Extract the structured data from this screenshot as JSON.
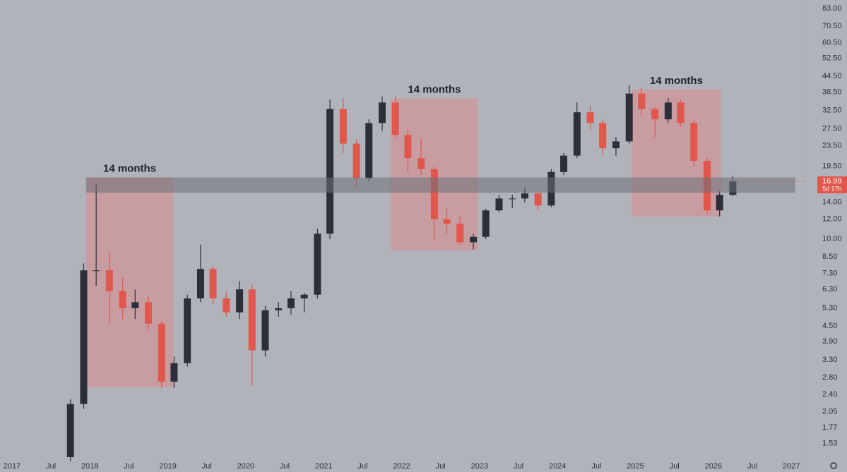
{
  "chart_data": {
    "type": "candlestick",
    "log_scale": true,
    "up_color": "#2b2f3a",
    "down_color": "#e2574c",
    "zone_color": "#d98a8e",
    "band_color": "#6e7079",
    "xlim": [
      2016.846,
      2027.18
    ],
    "ylim": [
      1.29,
      89.7
    ],
    "xticks": [
      2017,
      {
        "value": 2017.5,
        "label": "Jul"
      },
      2018,
      {
        "value": 2018.5,
        "label": "Jul"
      },
      2019,
      {
        "value": 2019.5,
        "label": "Jul"
      },
      2020,
      {
        "value": 2020.5,
        "label": "Jul"
      },
      2021,
      {
        "value": 2021.5,
        "label": "Jul"
      },
      2022,
      {
        "value": 2022.5,
        "label": "Jul"
      },
      2023,
      {
        "value": 2023.5,
        "label": "Jul"
      },
      2024,
      {
        "value": 2024.5,
        "label": "Jul"
      },
      2025,
      {
        "value": 2025.5,
        "label": "Jul"
      },
      2026,
      {
        "value": 2026.5,
        "label": "Jul"
      },
      2027
    ],
    "yticks": [
      {
        "value": 83,
        "label": "83.00"
      },
      {
        "value": 70.5,
        "label": "70.50"
      },
      {
        "value": 60.5,
        "label": "60.50"
      },
      {
        "value": 52.5,
        "label": "52.50"
      },
      {
        "value": 44.5,
        "label": "44.50"
      },
      {
        "value": 38.5,
        "label": "38.50"
      },
      {
        "value": 32.5,
        "label": "32.50"
      },
      {
        "value": 27.5,
        "label": "27.50"
      },
      {
        "value": 23.5,
        "label": "23.50"
      },
      {
        "value": 19.5,
        "label": "19.50"
      },
      {
        "value": 14,
        "label": "14.00"
      },
      {
        "value": 12,
        "label": "12.00"
      },
      {
        "value": 10,
        "label": "10.00"
      },
      {
        "value": 8.5,
        "label": "8.50"
      },
      {
        "value": 7.3,
        "label": "7.30"
      },
      {
        "value": 6.3,
        "label": "6.30"
      },
      {
        "value": 5.3,
        "label": "5.30"
      },
      {
        "value": 4.5,
        "label": "4.50"
      },
      {
        "value": 3.9,
        "label": "3.90"
      },
      {
        "value": 3.3,
        "label": "3.30"
      },
      {
        "value": 2.8,
        "label": "2.80"
      },
      {
        "value": 2.4,
        "label": "2.40"
      },
      {
        "value": 2.05,
        "label": "2.05"
      },
      {
        "value": 1.77,
        "label": "1.77"
      },
      {
        "value": 1.53,
        "label": "1.53"
      }
    ],
    "x": [
      2017.75,
      2017.92,
      2018.08,
      2018.25,
      2018.42,
      2018.58,
      2018.75,
      2018.92,
      2019.08,
      2019.25,
      2019.42,
      2019.58,
      2019.75,
      2019.92,
      2020.08,
      2020.25,
      2020.42,
      2020.58,
      2020.75,
      2020.92,
      2021.08,
      2021.25,
      2021.42,
      2021.58,
      2021.75,
      2021.92,
      2022.08,
      2022.25,
      2022.42,
      2022.58,
      2022.75,
      2022.92,
      2023.08,
      2023.25,
      2023.42,
      2023.58,
      2023.75,
      2023.92,
      2024.08,
      2024.25,
      2024.42,
      2024.58,
      2024.75,
      2024.92,
      2025.08,
      2025.25,
      2025.42,
      2025.58,
      2025.75,
      2025.92,
      2026.08,
      2026.25
    ],
    "open": [
      1.35,
      2.2,
      7.5,
      7.5,
      6.2,
      5.3,
      5.6,
      4.6,
      2.7,
      3.2,
      5.8,
      7.6,
      5.8,
      5.1,
      6.3,
      3.6,
      5.2,
      5.3,
      5.8,
      6.0,
      10.5,
      33,
      24,
      17.5,
      29,
      35,
      26,
      21,
      19,
      12,
      11.5,
      9.7,
      10.2,
      13,
      14.5,
      14.5,
      15.2,
      13.6,
      18.5,
      21.5,
      32,
      29,
      23,
      24.5,
      38,
      33,
      30,
      35,
      29,
      20.5,
      13,
      15
    ],
    "high": [
      2.3,
      8,
      16.5,
      8.8,
      7,
      6.3,
      5.9,
      4.7,
      3.4,
      6.0,
      9.5,
      7.8,
      6.2,
      6.8,
      6.6,
      5.4,
      5.6,
      6.2,
      6.1,
      11,
      36,
      36.5,
      25,
      30,
      37,
      37,
      27.5,
      25,
      19.5,
      13.2,
      12.4,
      10.5,
      13.2,
      15,
      15,
      16,
      15.4,
      19,
      22,
      35,
      34,
      30,
      25.5,
      41,
      40,
      33.5,
      36.5,
      36,
      30,
      21,
      15.5,
      17.8
    ],
    "low": [
      1.3,
      2.1,
      6.5,
      4.6,
      4.8,
      4.8,
      4.3,
      2.55,
      2.55,
      3.1,
      5.6,
      5.5,
      4.9,
      4.8,
      2.6,
      3.4,
      4.9,
      5.0,
      5.1,
      5.8,
      10,
      22,
      16,
      17,
      27,
      25,
      18.5,
      18,
      9.8,
      10.5,
      9.5,
      9.1,
      10,
      12.8,
      13.3,
      14,
      13,
      13.4,
      18,
      21,
      27,
      21.5,
      21.5,
      24,
      31,
      25.5,
      29,
      28,
      19.5,
      12.5,
      12.3,
      14.8
    ],
    "close": [
      2.2,
      7.5,
      7.5,
      6.2,
      5.3,
      5.6,
      4.6,
      2.7,
      3.2,
      5.8,
      7.6,
      5.8,
      5.1,
      6.3,
      3.6,
      5.2,
      5.3,
      5.8,
      6.0,
      10.5,
      33,
      24,
      17.5,
      29,
      35,
      26,
      21,
      19,
      12,
      11.5,
      9.7,
      10.2,
      13,
      14.5,
      14.5,
      15.2,
      13.6,
      18.5,
      21.5,
      32,
      29,
      23,
      24.5,
      38,
      33,
      30,
      35,
      29,
      20.5,
      13,
      15,
      16.99
    ],
    "zones": [
      {
        "x0": 2017.95,
        "x1": 2019.07,
        "y0": 2.57,
        "y1": 17.6,
        "label": "14 months"
      },
      {
        "x0": 2021.86,
        "x1": 2022.98,
        "y0": 9.0,
        "y1": 36.3,
        "label": "14 months"
      },
      {
        "x0": 2024.95,
        "x1": 2026.1,
        "y0": 12.3,
        "y1": 39.4,
        "label": "14 months"
      }
    ],
    "band": {
      "x0": 2017.95,
      "x1": 2027.05,
      "y0": 15.3,
      "y1": 17.6
    },
    "last_price": 16.99,
    "countdown": "5d 17h"
  }
}
